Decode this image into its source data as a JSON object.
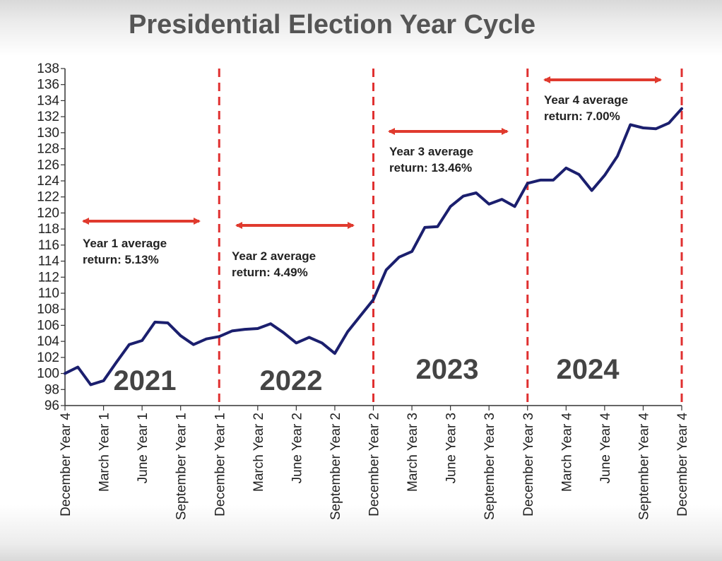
{
  "chart_data": {
    "type": "line",
    "title": "Presidential Election Year Cycle",
    "xlabel": "",
    "ylabel": "",
    "ylim": [
      96,
      138
    ],
    "yticks": [
      96,
      98,
      100,
      102,
      104,
      106,
      108,
      110,
      112,
      114,
      116,
      118,
      120,
      122,
      124,
      126,
      128,
      130,
      132,
      134,
      136,
      138
    ],
    "grid": false,
    "x_tick_labels": [
      "December Year 4",
      "March Year 1",
      "June Year 1",
      "September Year 1",
      "December Year 1",
      "March Year 2",
      "June Year 2",
      "September Year 2",
      "December Year 2",
      "March Year 3",
      "June Year 3",
      "September Year 3",
      "December Year 3",
      "March Year 4",
      "June Year 4",
      "September Year 4",
      "December Year 4"
    ],
    "series": [
      {
        "color": "#1b1f6e",
        "values": [
          100.0,
          100.8,
          98.6,
          99.1,
          101.4,
          103.6,
          104.1,
          106.4,
          106.3,
          104.7,
          103.6,
          104.3,
          104.6,
          105.3,
          105.5,
          105.6,
          106.2,
          105.1,
          103.8,
          104.5,
          103.8,
          102.5,
          105.2,
          107.2,
          109.2,
          112.9,
          114.5,
          115.2,
          118.2,
          118.3,
          120.8,
          122.1,
          122.5,
          121.1,
          121.7,
          120.8,
          123.7,
          124.1,
          124.1,
          125.6,
          124.8,
          122.8,
          124.7,
          127.1,
          131.0,
          130.6,
          130.5,
          131.2,
          133.0
        ]
      }
    ],
    "period_dividers": [
      "December Year 1",
      "December Year 2",
      "December Year 3",
      "December Year 4"
    ],
    "divider_color": "#e03030",
    "arrow_color": "#e03a2e",
    "year_labels": [
      "2021",
      "2022",
      "2023",
      "2024"
    ],
    "annotations": [
      {
        "line1": "Year 1 average",
        "line2": "return: 5.13%"
      },
      {
        "line1": "Year 2 average",
        "line2": "return: 4.49%"
      },
      {
        "line1": "Year 3 average",
        "line2": "return: 13.46%"
      },
      {
        "line1": "Year 4 average",
        "line2": "return: 7.00%"
      }
    ]
  }
}
